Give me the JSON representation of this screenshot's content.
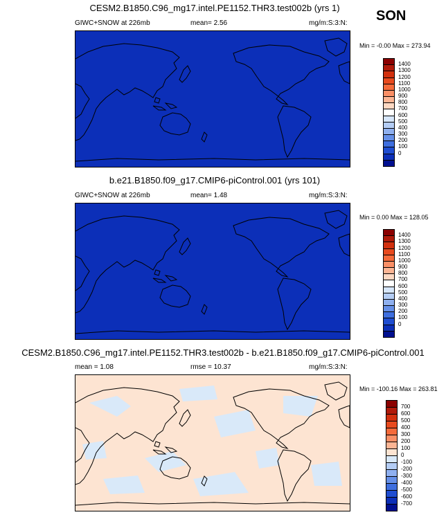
{
  "season": "SON",
  "panels": [
    {
      "title": "CESM2.B1850.C96_mg17.intel.PE1152.THR3.test002b (yrs 1)",
      "left_label": "GIWC+SNOW at 226mb",
      "stat_label": "mean=  2.56",
      "units": "mg/m:S:3:N:",
      "minmax": "Min =  -0.00 Max = 273.94",
      "colorbar_labels": [
        "1400",
        "1300",
        "1200",
        "1100",
        "1000",
        "900",
        "800",
        "700",
        "600",
        "500",
        "400",
        "300",
        "200",
        "100",
        "0"
      ],
      "colorbar_colors": [
        "#8b0000",
        "#b01a0a",
        "#d2300e",
        "#e84a1e",
        "#f56a3a",
        "#fa8f66",
        "#fcb594",
        "#fdd8c2",
        "#ffffff",
        "#d6e6fa",
        "#b4cdf5",
        "#8fb0ef",
        "#6690e8",
        "#3f6fdf",
        "#1f4dd1",
        "#0c2fb8",
        "#001090"
      ],
      "map_fill": "#0c2fb8"
    },
    {
      "title": "b.e21.B1850.f09_g17.CMIP6-piControl.001 (yrs 101)",
      "left_label": "GIWC+SNOW at 226mb",
      "stat_label": "mean=  1.48",
      "units": "mg/m:S:3:N:",
      "minmax": "Min =  0.00 Max = 128.05",
      "colorbar_labels": [
        "1400",
        "1300",
        "1200",
        "1100",
        "1000",
        "900",
        "800",
        "700",
        "600",
        "500",
        "400",
        "300",
        "200",
        "100",
        "0"
      ],
      "colorbar_colors": [
        "#8b0000",
        "#b01a0a",
        "#d2300e",
        "#e84a1e",
        "#f56a3a",
        "#fa8f66",
        "#fcb594",
        "#fdd8c2",
        "#ffffff",
        "#d6e6fa",
        "#b4cdf5",
        "#8fb0ef",
        "#6690e8",
        "#3f6fdf",
        "#1f4dd1",
        "#0c2fb8",
        "#001090"
      ],
      "map_fill": "#0c2fb8"
    },
    {
      "title": "CESM2.B1850.C96_mg17.intel.PE1152.THR3.test002b - b.e21.B1850.f09_g17.CMIP6-piControl.001",
      "left_label": "mean =  1.08",
      "stat_label": "rmse =  10.37",
      "units": "mg/m:S:3:N:",
      "minmax": "Min = -100.16 Max = 263.81",
      "colorbar_labels": [
        "700",
        "600",
        "500",
        "400",
        "300",
        "200",
        "100",
        "0",
        "-100",
        "-200",
        "-300",
        "-400",
        "-500",
        "-600",
        "-700"
      ],
      "colorbar_colors": [
        "#8b0000",
        "#b01a0a",
        "#d2300e",
        "#e84a1e",
        "#f56a3a",
        "#fa8f66",
        "#fcb594",
        "#fde4d2",
        "#d9e9f9",
        "#b4cdf5",
        "#8fb0ef",
        "#6690e8",
        "#3f6fdf",
        "#1f4dd1",
        "#0c2fb8",
        "#001090"
      ],
      "map_fill": "#fde4d2",
      "map_secondary": "#d9e9f9"
    }
  ]
}
